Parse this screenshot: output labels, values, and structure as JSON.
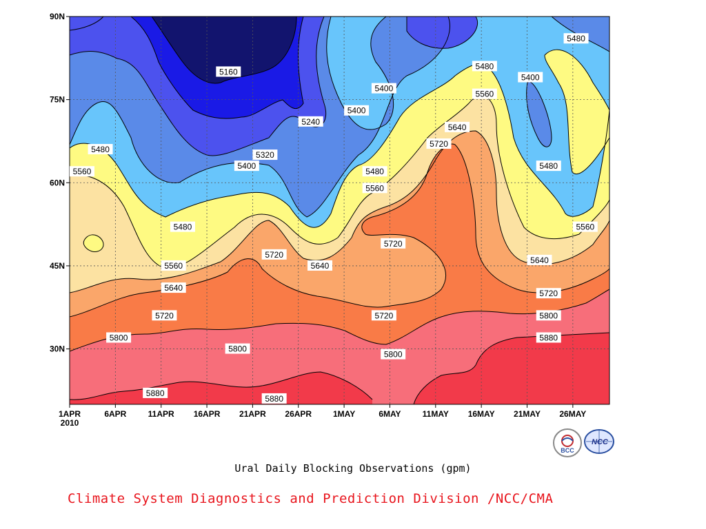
{
  "chart_data": {
    "type": "heatmap",
    "title": "Ural Daily Blocking Observations (gpm)",
    "credit": "Climate System Diagnostics and Prediction Division /NCC/CMA",
    "x_tick_labels": [
      "1APR",
      "6APR",
      "11APR",
      "16APR",
      "21APR",
      "26APR",
      "1MAY",
      "6MAY",
      "11MAY",
      "16MAY",
      "21MAY",
      "26MAY"
    ],
    "x_year_label": "2010",
    "y_tick_labels": [
      "90N",
      "75N",
      "60N",
      "45N",
      "30N"
    ],
    "ylim": [
      20,
      90
    ],
    "xlim": [
      "1APR",
      "30MAY"
    ],
    "contour_levels": [
      5160,
      5240,
      5320,
      5400,
      5480,
      5560,
      5640,
      5720,
      5800,
      5880
    ],
    "fill_colors": {
      "5160": "#12146e",
      "5240": "#1a1ae6",
      "5320": "#4c52ee",
      "5400": "#5a8ae8",
      "5480": "#68c5fb",
      "5560": "#fefa82",
      "5640": "#fce2a2",
      "5720": "#faa66a",
      "5800": "#f97b47",
      "5880": "#f76e7a",
      "above": "#f23a4a"
    },
    "contour_labels": [
      {
        "text": "5160",
        "day": 16,
        "lat": 80
      },
      {
        "text": "5240",
        "day": 25,
        "lat": 71
      },
      {
        "text": "5320",
        "day": 20,
        "lat": 65
      },
      {
        "text": "5400",
        "day": 18,
        "lat": 63
      },
      {
        "text": "5400",
        "day": 30,
        "lat": 73
      },
      {
        "text": "5400",
        "day": 33,
        "lat": 77
      },
      {
        "text": "5400",
        "day": 49,
        "lat": 79
      },
      {
        "text": "5480",
        "day": 2,
        "lat": 66
      },
      {
        "text": "5480",
        "day": 11,
        "lat": 52
      },
      {
        "text": "5480",
        "day": 32,
        "lat": 62
      },
      {
        "text": "5480",
        "day": 44,
        "lat": 81
      },
      {
        "text": "5480",
        "day": 51,
        "lat": 63
      },
      {
        "text": "5480",
        "day": 54,
        "lat": 86
      },
      {
        "text": "5560",
        "day": 0,
        "lat": 62
      },
      {
        "text": "5560",
        "day": 10,
        "lat": 45
      },
      {
        "text": "5560",
        "day": 32,
        "lat": 59
      },
      {
        "text": "5560",
        "day": 44,
        "lat": 76
      },
      {
        "text": "5560",
        "day": 55,
        "lat": 52
      },
      {
        "text": "5640",
        "day": 10,
        "lat": 41
      },
      {
        "text": "5640",
        "day": 26,
        "lat": 45
      },
      {
        "text": "5640",
        "day": 41,
        "lat": 70
      },
      {
        "text": "5640",
        "day": 50,
        "lat": 46
      },
      {
        "text": "5720",
        "day": 9,
        "lat": 36
      },
      {
        "text": "5720",
        "day": 21,
        "lat": 47
      },
      {
        "text": "5720",
        "day": 34,
        "lat": 49
      },
      {
        "text": "5720",
        "day": 39,
        "lat": 67
      },
      {
        "text": "5720",
        "day": 33,
        "lat": 36
      },
      {
        "text": "5720",
        "day": 51,
        "lat": 40
      },
      {
        "text": "5800",
        "day": 4,
        "lat": 32
      },
      {
        "text": "5800",
        "day": 17,
        "lat": 30
      },
      {
        "text": "5800",
        "day": 34,
        "lat": 29
      },
      {
        "text": "5800",
        "day": 51,
        "lat": 36
      },
      {
        "text": "5880",
        "day": 8,
        "lat": 22
      },
      {
        "text": "5880",
        "day": 21,
        "lat": 21
      },
      {
        "text": "5880",
        "day": 51,
        "lat": 32
      }
    ],
    "grid": true,
    "logos": [
      "BCC",
      "NCC"
    ]
  }
}
